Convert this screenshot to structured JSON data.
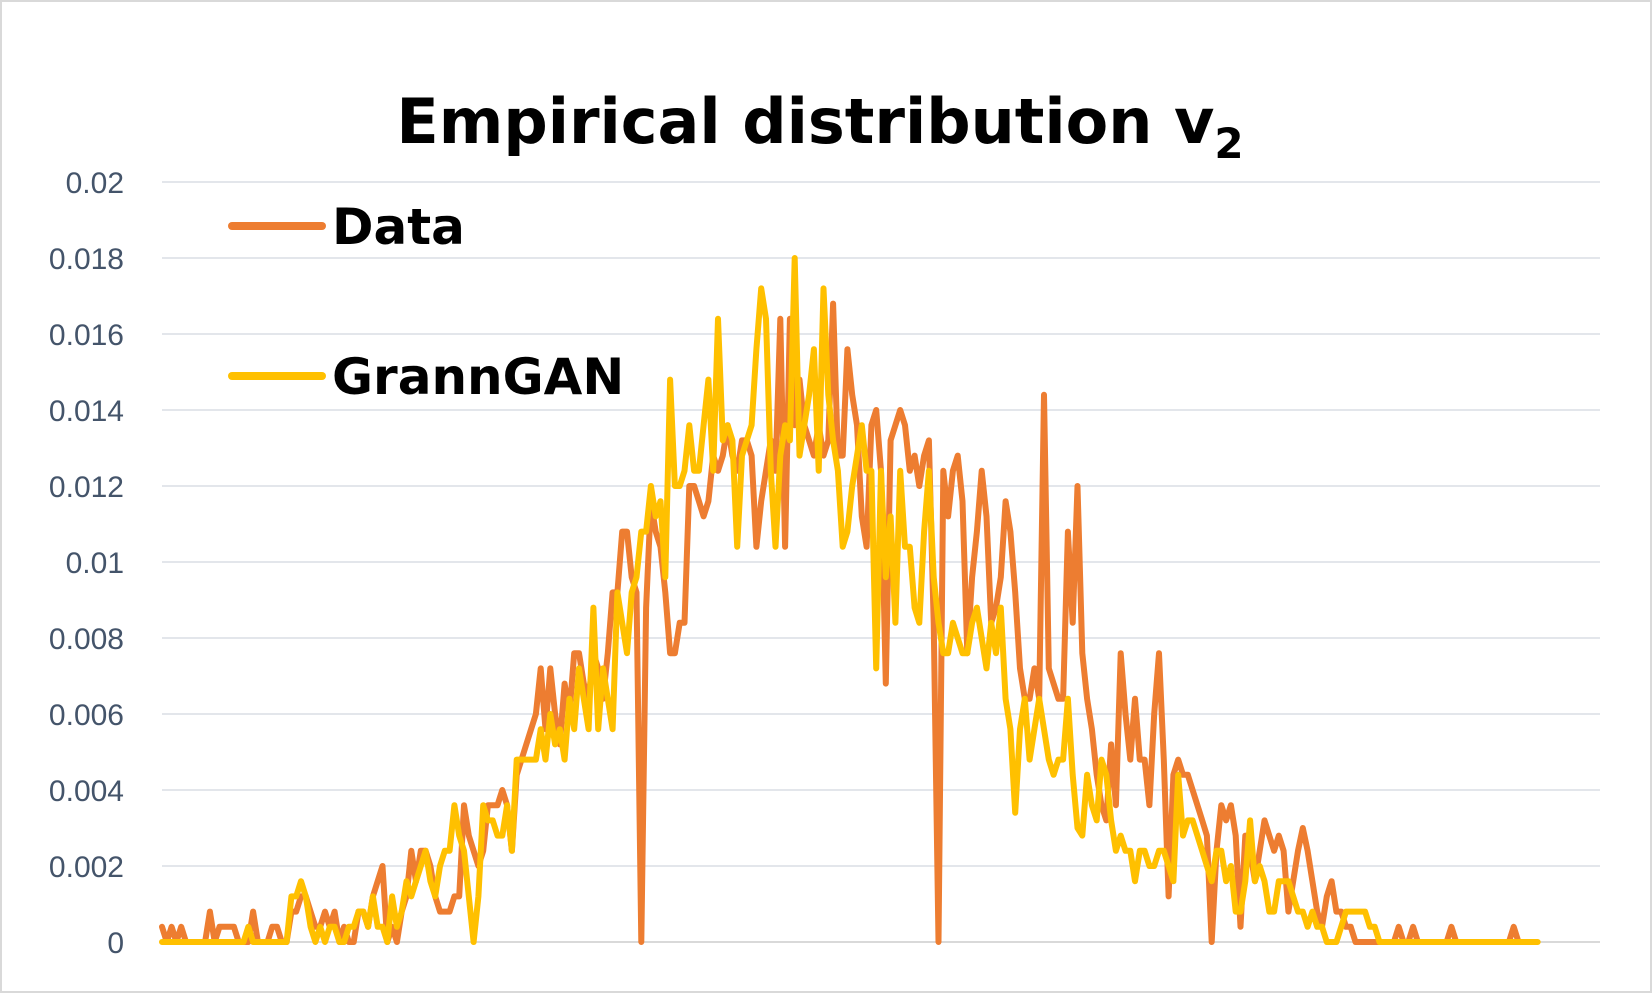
{
  "chart_data": {
    "type": "line",
    "title": "Empirical distribution v",
    "title_subscript": "2",
    "xlabel": "",
    "ylabel": "",
    "ylim": [
      0,
      0.02
    ],
    "y_ticks": [
      "0",
      "0.002",
      "0.004",
      "0.006",
      "0.008",
      "0.01",
      "0.012",
      "0.014",
      "0.016",
      "0.018",
      "0.02"
    ],
    "grid": true,
    "legend_position": "top-left",
    "x_count": 301,
    "series": [
      {
        "name": "Data",
        "color": "#ED7D31",
        "values": [
          0.0004,
          0,
          0.0004,
          0,
          0.0004,
          0,
          0,
          0,
          0,
          0,
          0.0008,
          0,
          0.0004,
          0.0004,
          0.0004,
          0.0004,
          0,
          0,
          0,
          0.0008,
          0,
          0,
          0,
          0.0004,
          0.0004,
          0,
          0,
          0.0008,
          0.0008,
          0.0012,
          0.0012,
          0.0008,
          0.0004,
          0.0004,
          0.0008,
          0.0004,
          0.0008,
          0,
          0.0004,
          0,
          0,
          0.0008,
          0.0008,
          0.0004,
          0.0012,
          0.0016,
          0.002,
          0,
          0.0004,
          0,
          0.0008,
          0.0012,
          0.0024,
          0.0016,
          0.0024,
          0.0024,
          0.002,
          0.0012,
          0.0008,
          0.0008,
          0.0008,
          0.0012,
          0.0012,
          0.0036,
          0.0028,
          0.0024,
          0.002,
          0.0024,
          0.0036,
          0.0036,
          0.0036,
          0.004,
          0.0036,
          0.0024,
          0.0044,
          0.0048,
          0.0052,
          0.0056,
          0.006,
          0.0072,
          0.0056,
          0.0072,
          0.006,
          0.0052,
          0.0068,
          0.006,
          0.0076,
          0.0076,
          0.0068,
          0.0064,
          0.0076,
          0.0072,
          0.0064,
          0.0076,
          0.0092,
          0.0092,
          0.0108,
          0.0108,
          0.0096,
          0.0092,
          0,
          0.0088,
          0.0116,
          0.0108,
          0.0104,
          0.0092,
          0.0076,
          0.0076,
          0.0084,
          0.0084,
          0.012,
          0.012,
          0.0116,
          0.0112,
          0.0116,
          0.0128,
          0.0124,
          0.0128,
          0.0136,
          0.0128,
          0.0124,
          0.0132,
          0.0132,
          0.0128,
          0.0104,
          0.0116,
          0.0124,
          0.0132,
          0.0124,
          0.0164,
          0.0104,
          0.0164,
          0.0136,
          0.0148,
          0.0136,
          0.0132,
          0.0128,
          0.0136,
          0.0128,
          0.0132,
          0.0168,
          0.0128,
          0.0128,
          0.0156,
          0.0144,
          0.0136,
          0.0112,
          0.0104,
          0.0136,
          0.014,
          0.0124,
          0.0068,
          0.0132,
          0.0136,
          0.014,
          0.0136,
          0.0124,
          0.0128,
          0.012,
          0.0128,
          0.0132,
          0.0084,
          0,
          0.0124,
          0.0112,
          0.0124,
          0.0128,
          0.0116,
          0.0076,
          0.0096,
          0.0108,
          0.0124,
          0.0112,
          0.0084,
          0.0088,
          0.0096,
          0.0116,
          0.0108,
          0.0092,
          0.0072,
          0.0064,
          0.0064,
          0.0072,
          0.0064,
          0.0144,
          0.0072,
          0.0068,
          0.0064,
          0.0064,
          0.0108,
          0.0084,
          0.012,
          0.0076,
          0.0064,
          0.0056,
          0.0044,
          0.0036,
          0.0032,
          0.0052,
          0.0036,
          0.0076,
          0.006,
          0.0048,
          0.0064,
          0.0048,
          0.0048,
          0.0036,
          0.006,
          0.0076,
          0.0048,
          0.0012,
          0.0044,
          0.0048,
          0.0044,
          0.0044,
          0.004,
          0.0036,
          0.0032,
          0.0028,
          0,
          0.0024,
          0.0036,
          0.0032,
          0.0036,
          0.0028,
          0.0004,
          0.0028,
          0.0024,
          0.0016,
          0.0024,
          0.0032,
          0.0028,
          0.0024,
          0.0028,
          0.0024,
          0.0008,
          0.0016,
          0.0024,
          0.003,
          0.0024,
          0.0016,
          0.0008,
          0.0004,
          0.0012,
          0.0016,
          0.0008,
          0.0008,
          0.0004,
          0.0004,
          0,
          0,
          0,
          0,
          0,
          0,
          0,
          0,
          0,
          0.0004,
          0,
          0,
          0.0004,
          0,
          0,
          0,
          0,
          0,
          0,
          0,
          0.0004,
          0,
          0,
          0,
          0,
          0,
          0,
          0,
          0,
          0,
          0,
          0,
          0,
          0.0004,
          0
        ]
      },
      {
        "name": "GrannGAN",
        "color": "#FFC000",
        "values": [
          0,
          0,
          0,
          0,
          0,
          0,
          0,
          0,
          0,
          0,
          0,
          0,
          0,
          0,
          0,
          0,
          0,
          0,
          0.0004,
          0,
          0,
          0,
          0,
          0,
          0,
          0,
          0,
          0.0012,
          0.0012,
          0.0016,
          0.0012,
          0.0004,
          0,
          0.0004,
          0,
          0.0004,
          0.0004,
          0,
          0,
          0.0004,
          0.0004,
          0.0008,
          0.0008,
          0.0004,
          0.0012,
          0.0004,
          0.0004,
          0,
          0.0012,
          0.0004,
          0.0008,
          0.0016,
          0.0012,
          0.0016,
          0.002,
          0.0024,
          0.0016,
          0.0012,
          0.002,
          0.0024,
          0.0024,
          0.0036,
          0.0028,
          0.0024,
          0.0012,
          0,
          0.0012,
          0.0036,
          0.0032,
          0.0032,
          0.0028,
          0.0028,
          0.0036,
          0.0024,
          0.0048,
          0.0048,
          0.0048,
          0.0048,
          0.0048,
          0.0056,
          0.0048,
          0.006,
          0.0052,
          0.0056,
          0.0048,
          0.0064,
          0.0056,
          0.0072,
          0.0064,
          0.0056,
          0.0088,
          0.0056,
          0.0072,
          0.0064,
          0.0056,
          0.0092,
          0.0084,
          0.0076,
          0.0092,
          0.0096,
          0.0108,
          0.0108,
          0.012,
          0.0112,
          0.0116,
          0.0096,
          0.0148,
          0.012,
          0.012,
          0.0124,
          0.0136,
          0.0124,
          0.0124,
          0.0136,
          0.0148,
          0.0124,
          0.0164,
          0.0132,
          0.0136,
          0.0132,
          0.0104,
          0.0128,
          0.0132,
          0.0136,
          0.0156,
          0.0172,
          0.0164,
          0.0124,
          0.0104,
          0.0128,
          0.0136,
          0.0132,
          0.018,
          0.0128,
          0.0136,
          0.0144,
          0.0156,
          0.0124,
          0.0172,
          0.0144,
          0.0132,
          0.0124,
          0.0104,
          0.0108,
          0.012,
          0.0128,
          0.0136,
          0.0124,
          0.0124,
          0.0072,
          0.0124,
          0.0096,
          0.0112,
          0.0084,
          0.0124,
          0.0104,
          0.0104,
          0.0088,
          0.0084,
          0.0108,
          0.0124,
          0.0096,
          0.0084,
          0.0076,
          0.0076,
          0.0084,
          0.008,
          0.0076,
          0.0076,
          0.0084,
          0.0088,
          0.008,
          0.0072,
          0.0084,
          0.0076,
          0.0088,
          0.0064,
          0.0056,
          0.0034,
          0.0056,
          0.0064,
          0.0048,
          0.0056,
          0.0064,
          0.0056,
          0.0048,
          0.0044,
          0.0048,
          0.0048,
          0.0064,
          0.0044,
          0.003,
          0.0028,
          0.0044,
          0.0036,
          0.0032,
          0.0048,
          0.0044,
          0.0032,
          0.0024,
          0.0028,
          0.0024,
          0.0024,
          0.0016,
          0.0024,
          0.0024,
          0.002,
          0.002,
          0.0024,
          0.0024,
          0.002,
          0.0016,
          0.0044,
          0.0028,
          0.0032,
          0.0032,
          0.0028,
          0.0024,
          0.002,
          0.0016,
          0.0024,
          0.0024,
          0.0016,
          0.002,
          0.0008,
          0.0008,
          0.0016,
          0.0032,
          0.0016,
          0.002,
          0.0016,
          0.0008,
          0.0008,
          0.0016,
          0.0016,
          0.0016,
          0.0012,
          0.0008,
          0.0008,
          0.0004,
          0.0008,
          0.0004,
          0.0004,
          0,
          0,
          0,
          0.0004,
          0.0008,
          0.0008,
          0.0008,
          0.0008,
          0.0008,
          0.0004,
          0.0004,
          0,
          0,
          0,
          0,
          0,
          0,
          0,
          0,
          0,
          0,
          0,
          0,
          0,
          0,
          0,
          0,
          0,
          0,
          0,
          0,
          0,
          0,
          0,
          0,
          0,
          0,
          0,
          0,
          0,
          0,
          0,
          0,
          0,
          0
        ]
      }
    ]
  }
}
